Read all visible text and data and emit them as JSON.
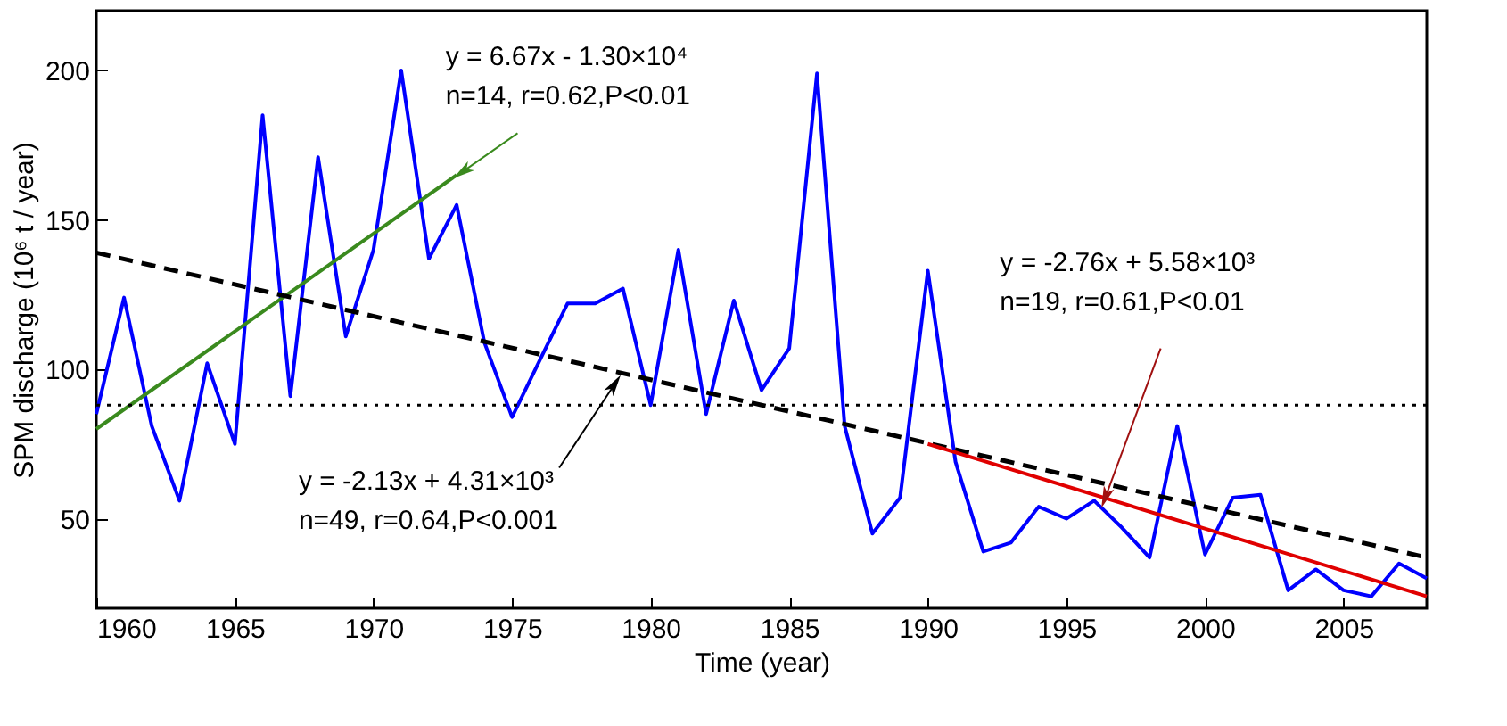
{
  "chart_data": {
    "type": "line",
    "xlabel": "Time (year)",
    "ylabel": "SPM discharge (10⁶ t / year)",
    "xlim": [
      1960,
      2008
    ],
    "ylim": [
      20,
      220
    ],
    "xticks": [
      1960,
      1965,
      1970,
      1975,
      1980,
      1985,
      1990,
      1995,
      2000,
      2005
    ],
    "yticks": [
      50,
      100,
      150,
      200
    ],
    "grid": false,
    "marker": "none",
    "series": [
      {
        "color": "#0000ff",
        "line_style": "solid",
        "x": [
          1960,
          1961,
          1962,
          1963,
          1964,
          1965,
          1966,
          1967,
          1968,
          1969,
          1970,
          1971,
          1972,
          1973,
          1974,
          1975,
          1976,
          1977,
          1978,
          1979,
          1980,
          1981,
          1982,
          1983,
          1984,
          1985,
          1986,
          1987,
          1988,
          1989,
          1990,
          1991,
          1992,
          1993,
          1994,
          1995,
          1996,
          1997,
          1998,
          1999,
          2000,
          2001,
          2002,
          2003,
          2004,
          2005,
          2006,
          2007,
          2008
        ],
        "values": [
          85,
          124,
          81,
          56,
          102,
          75,
          185,
          91,
          171,
          111,
          140,
          200,
          137,
          155,
          109,
          84,
          103,
          122,
          122,
          127,
          88,
          140,
          85,
          123,
          93,
          107,
          199,
          81,
          45,
          57,
          133,
          69,
          39,
          42,
          54,
          50,
          56,
          47,
          37,
          81,
          38,
          57,
          58,
          26,
          33,
          26,
          24,
          35,
          30
        ]
      },
      {
        "color": "#3a8a1e",
        "line_style": "solid",
        "x": [
          1960,
          1973
        ],
        "values": [
          80,
          165
        ]
      },
      {
        "color": "#000000",
        "line_style": "dashed",
        "x": [
          1960,
          2008
        ],
        "values": [
          139,
          37
        ]
      },
      {
        "color": "#e00000",
        "line_style": "solid",
        "x": [
          1990,
          2008
        ],
        "values": [
          75,
          24
        ]
      }
    ],
    "ref_lines": [
      {
        "axis": "y",
        "value": 88,
        "color": "#000000",
        "line_style": "dotted"
      }
    ],
    "annotations": [
      {
        "text": "y = 6.67x - 1.30×10⁴\nn=14, r=0.62,P<0.01",
        "x": 1973.2,
        "y": 166
      },
      {
        "text": "y = -2.13x + 4.31×10³\nn=49, r=0.64,P<0.001",
        "x": 1978.7,
        "y": 95
      },
      {
        "text": "y = -2.76x + 5.58×10³\nn=19, r=0.61,P<0.01",
        "x": 1996.4,
        "y": 57
      }
    ]
  }
}
